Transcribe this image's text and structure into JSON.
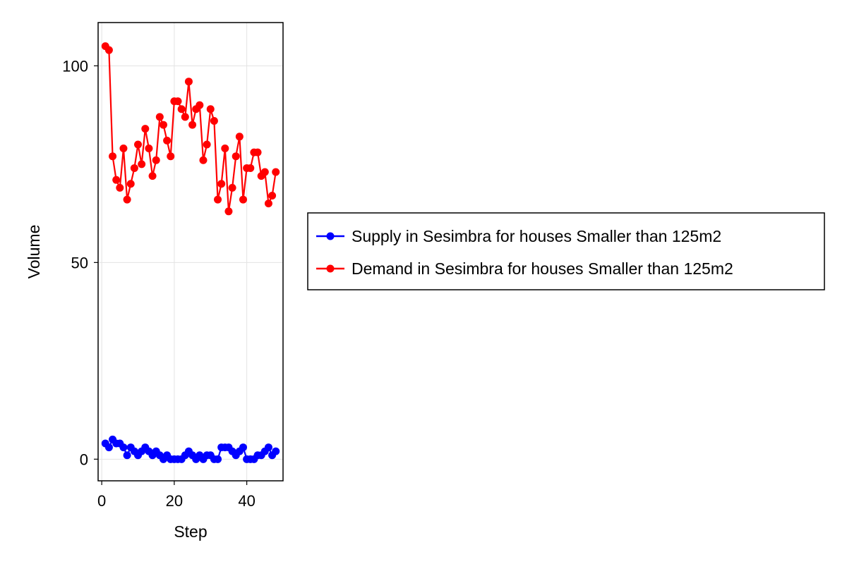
{
  "chart_data": {
    "type": "line",
    "title": "",
    "xlabel": "Step",
    "ylabel": "Volume",
    "xlim": [
      -1,
      50
    ],
    "ylim": [
      -5.5,
      111
    ],
    "x_ticks": [
      0,
      20,
      40
    ],
    "y_ticks": [
      0,
      50,
      100
    ],
    "grid": true,
    "legend_position": "right",
    "x": [
      1,
      2,
      3,
      4,
      5,
      6,
      7,
      8,
      9,
      10,
      11,
      12,
      13,
      14,
      15,
      16,
      17,
      18,
      19,
      20,
      21,
      22,
      23,
      24,
      25,
      26,
      27,
      28,
      29,
      30,
      31,
      32,
      33,
      34,
      35,
      36,
      37,
      38,
      39,
      40,
      41,
      42,
      43,
      44,
      45,
      46,
      47,
      48
    ],
    "series": [
      {
        "name": "Supply in Sesimbra for houses Smaller than 125m2",
        "color": "#0000ff",
        "values": [
          4,
          3,
          5,
          4,
          4,
          3,
          1,
          3,
          2,
          1,
          2,
          3,
          2,
          1,
          2,
          1,
          0,
          1,
          0,
          0,
          0,
          0,
          1,
          2,
          1,
          0,
          1,
          0,
          1,
          1,
          0,
          0,
          3,
          3,
          3,
          2,
          1,
          2,
          3,
          0,
          0,
          0,
          1,
          1,
          2,
          3,
          1,
          2
        ]
      },
      {
        "name": "Demand in Sesimbra for houses Smaller than 125m2",
        "color": "#ff0000",
        "values": [
          105,
          104,
          77,
          71,
          69,
          79,
          66,
          70,
          74,
          80,
          75,
          84,
          79,
          72,
          76,
          87,
          85,
          81,
          77,
          91,
          91,
          89,
          87,
          96,
          85,
          89,
          90,
          76,
          80,
          89,
          86,
          66,
          70,
          79,
          63,
          69,
          77,
          82,
          66,
          74,
          74,
          78,
          78,
          72,
          73,
          65,
          67,
          73
        ]
      }
    ]
  }
}
